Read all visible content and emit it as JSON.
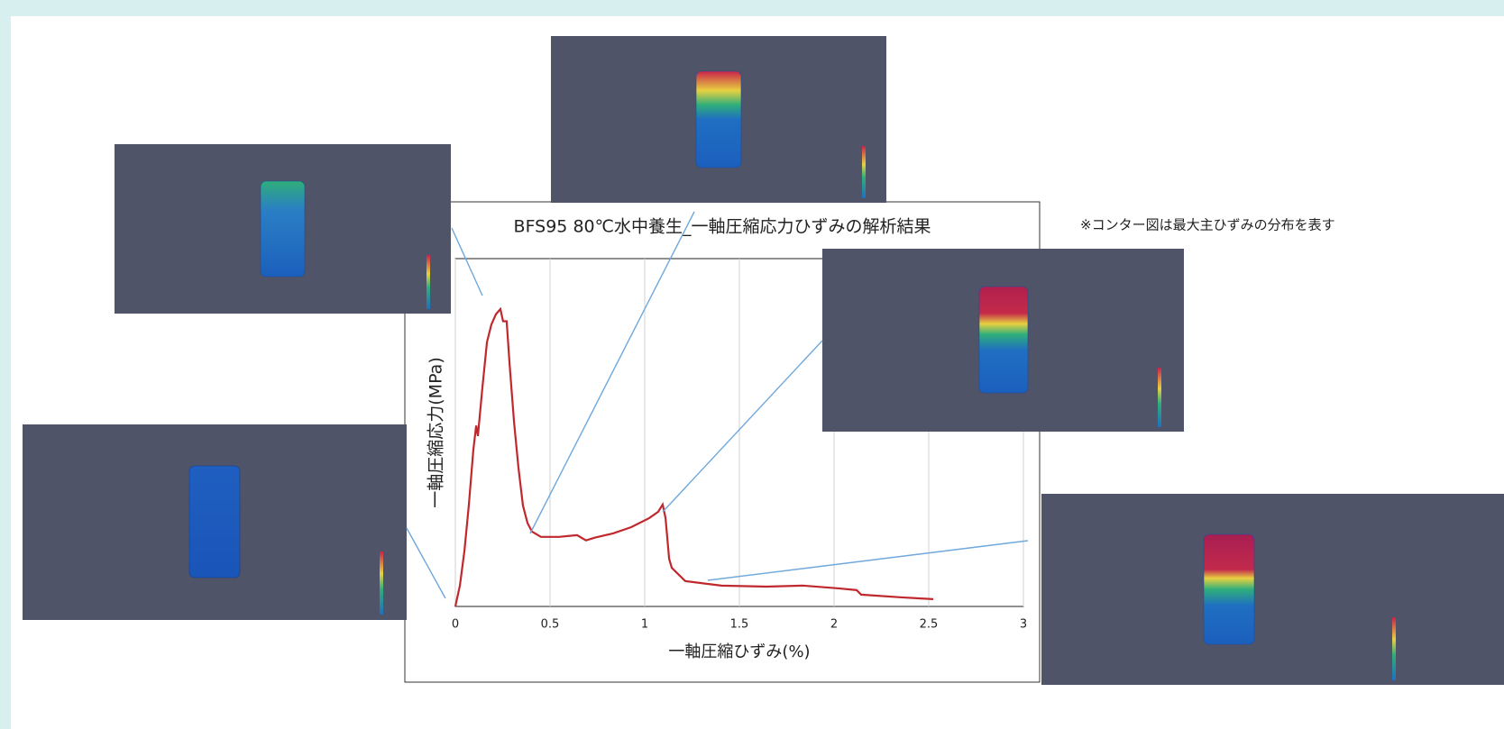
{
  "note": "※コンター図は最大主ひずみの分布を表す",
  "chart_data": {
    "type": "line",
    "title": "BFS95 80℃水中養生_一軸圧縮応力ひずみの解析結果",
    "x_label": "一軸圧縮ひずみ(%)",
    "y_label": "一軸圧縮応力(MPa)",
    "xlim": [
      0,
      3
    ],
    "xticks": [
      0,
      0.5,
      1,
      1.5,
      2,
      2.5,
      3
    ],
    "ylim": [
      0,
      1
    ],
    "grid": true,
    "series": [
      {
        "color": "#c0282d",
        "x": [
          0,
          0.024,
          0.048,
          0.071,
          0.095,
          0.11,
          0.119,
          0.143,
          0.167,
          0.19,
          0.214,
          0.238,
          0.252,
          0.271,
          0.286,
          0.31,
          0.333,
          0.357,
          0.381,
          0.405,
          0.452,
          0.548,
          0.643,
          0.69,
          0.738,
          0.833,
          0.929,
          1.024,
          1.071,
          1.095,
          1.11,
          1.129,
          1.143,
          1.214,
          1.405,
          1.643,
          1.833,
          2.024,
          2.119,
          2.143,
          2.357,
          2.524
        ],
        "values": [
          0,
          0.06,
          0.16,
          0.29,
          0.45,
          0.52,
          0.49,
          0.63,
          0.76,
          0.81,
          0.84,
          0.855,
          0.82,
          0.82,
          0.7,
          0.53,
          0.4,
          0.29,
          0.24,
          0.215,
          0.2,
          0.2,
          0.205,
          0.19,
          0.198,
          0.21,
          0.228,
          0.254,
          0.272,
          0.293,
          0.254,
          0.137,
          0.111,
          0.073,
          0.06,
          0.057,
          0.06,
          0.052,
          0.047,
          0.034,
          0.026,
          0.021
        ]
      }
    ]
  }
}
